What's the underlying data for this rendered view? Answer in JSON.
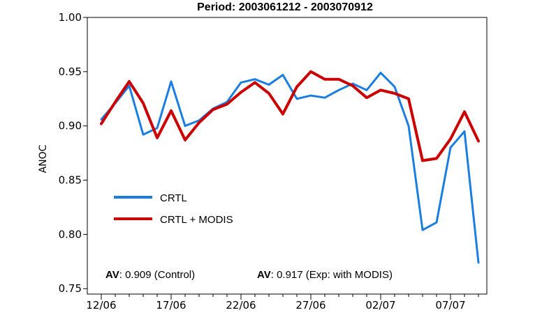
{
  "chart_data": {
    "type": "line",
    "title": "Period: 2003061212 - 2003070912",
    "xlabel": "",
    "ylabel": "ANOC",
    "ylim": [
      0.745,
      1.0
    ],
    "xlim": [
      0,
      29
    ],
    "y_ticks": [
      "0.75",
      "0.80",
      "0.85",
      "0.90",
      "0.95",
      "1.00"
    ],
    "y_tick_values": [
      0.75,
      0.8,
      0.85,
      0.9,
      0.95,
      1.0
    ],
    "x_ticks": [
      "12/06",
      "17/06",
      "22/06",
      "27/06",
      "02/07",
      "07/07"
    ],
    "x_tick_values": [
      0,
      5,
      10,
      15,
      20,
      25
    ],
    "grid": false,
    "legend_position": "lower-left",
    "x": [
      0,
      1,
      2,
      3,
      4,
      5,
      6,
      7,
      8,
      9,
      10,
      11,
      12,
      13,
      14,
      15,
      16,
      17,
      18,
      19,
      20,
      21,
      22,
      23,
      24,
      25,
      26,
      27
    ],
    "series": [
      {
        "name": "CRTL",
        "color": "#1a7ee0",
        "values": [
          0.906,
          0.921,
          0.937,
          0.892,
          0.898,
          0.941,
          0.9,
          0.905,
          0.916,
          0.922,
          0.94,
          0.943,
          0.938,
          0.947,
          0.925,
          0.928,
          0.926,
          0.933,
          0.939,
          0.933,
          0.949,
          0.936,
          0.9,
          0.804,
          0.811,
          0.88,
          0.895,
          0.774
        ]
      },
      {
        "name": "CRTL + MODIS",
        "color": "#cc0000",
        "values": [
          0.902,
          0.922,
          0.941,
          0.921,
          0.889,
          0.914,
          0.887,
          0.903,
          0.915,
          0.92,
          0.931,
          0.94,
          0.93,
          0.911,
          0.936,
          0.95,
          0.943,
          0.943,
          0.937,
          0.926,
          0.933,
          0.93,
          0.925,
          0.868,
          0.87,
          0.888,
          0.913,
          0.886
        ]
      }
    ],
    "annotations": [
      {
        "bold": "AV",
        "text": ": 0.909 (Control)"
      },
      {
        "bold": "AV",
        "text": ": 0.917 (Exp: with MODIS)"
      }
    ]
  }
}
